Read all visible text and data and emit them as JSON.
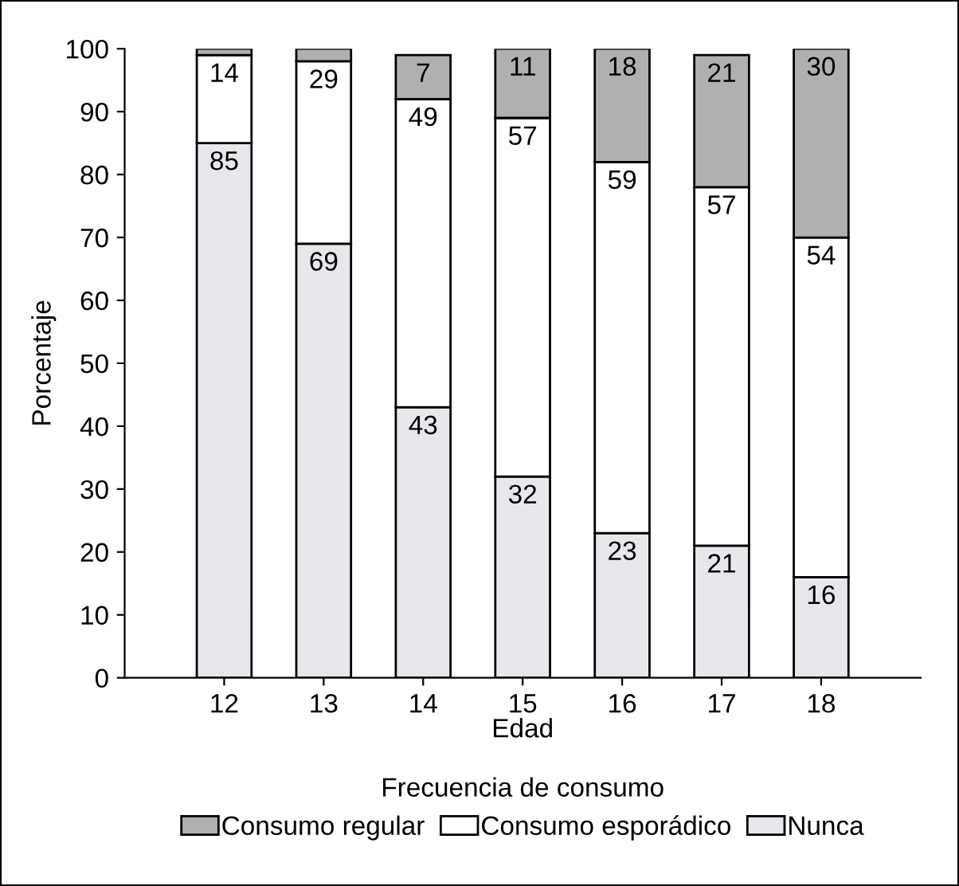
{
  "chart_data": {
    "type": "bar",
    "stacked": true,
    "xlabel": "Edad",
    "ylabel": "Porcentaje",
    "legend_title": "Frecuencia de consumo",
    "legend": "bottom",
    "categories": [
      "12",
      "13",
      "14",
      "15",
      "16",
      "17",
      "18"
    ],
    "ylim": [
      0,
      100
    ],
    "yticks": [
      0,
      10,
      20,
      30,
      40,
      50,
      60,
      70,
      80,
      90,
      100
    ],
    "grid": false,
    "series": [
      {
        "name": "Nunca",
        "color": "#e8e8ec",
        "values": [
          85,
          69,
          43,
          32,
          23,
          21,
          16
        ],
        "value_labels": [
          "85",
          "69",
          "43",
          "32",
          "23",
          "21",
          "16"
        ]
      },
      {
        "name": "Consumo esporádico",
        "color": "#ffffff",
        "values": [
          14,
          29,
          49,
          57,
          59,
          57,
          54
        ],
        "value_labels": [
          "14",
          "29",
          "49",
          "57",
          "59",
          "57",
          "54"
        ]
      },
      {
        "name": "Consumo regular",
        "color": "#b0b0b0",
        "values": [
          1,
          2,
          7,
          11,
          18,
          21,
          30
        ],
        "value_labels": [
          null,
          null,
          "7",
          "11",
          "18",
          "21",
          "30"
        ]
      }
    ]
  }
}
